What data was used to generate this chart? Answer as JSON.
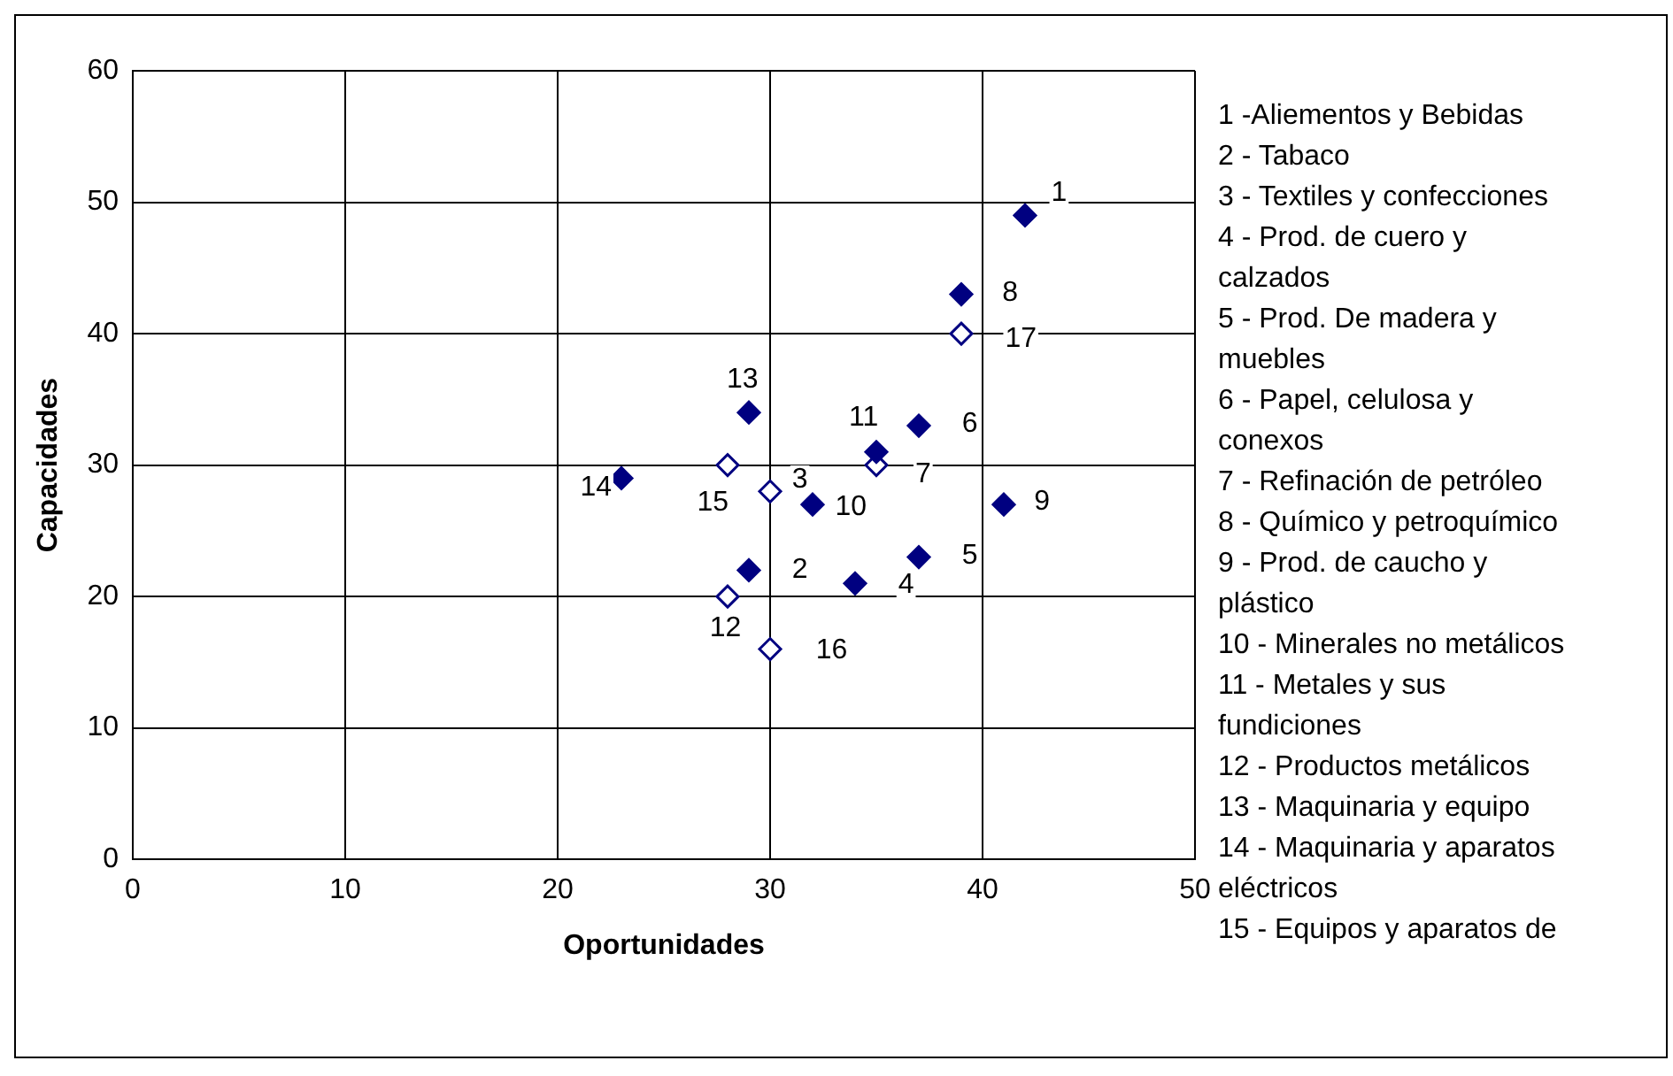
{
  "chart_data": {
    "type": "scatter",
    "xlabel": "Oportunidades",
    "ylabel": "Capacidades",
    "xlim": [
      0,
      50
    ],
    "xticks": [
      0,
      10,
      20,
      30,
      40,
      50
    ],
    "ylim": [
      0,
      60
    ],
    "yticks": [
      0,
      10,
      20,
      30,
      40,
      50,
      60
    ],
    "grid": true,
    "legend": false,
    "series": [
      {
        "color": "#000080",
        "marker": "diamond",
        "x": [
          42,
          29,
          34,
          37,
          37,
          35,
          39,
          41,
          32,
          29,
          23
        ],
        "values": [
          49,
          22,
          21,
          23,
          33,
          31,
          43,
          27,
          27,
          34,
          29
        ]
      },
      {
        "color": "#000080",
        "marker": "diamond open",
        "x": [
          30,
          35,
          28,
          28,
          30,
          39
        ],
        "values": [
          28,
          30,
          20,
          30,
          16,
          40
        ]
      }
    ],
    "annotations": [
      {
        "text": "1",
        "x": 43.6,
        "y": 50.7
      },
      {
        "text": "2",
        "x": 31.4,
        "y": 22
      },
      {
        "text": "3",
        "x": 31.4,
        "y": 28.9
      },
      {
        "text": "4",
        "x": 36.4,
        "y": 20.9
      },
      {
        "text": "5",
        "x": 39.4,
        "y": 23.1
      },
      {
        "text": "6",
        "x": 39.4,
        "y": 33.1
      },
      {
        "text": "7",
        "x": 37.2,
        "y": 29.3
      },
      {
        "text": "8",
        "x": 41.3,
        "y": 43.1
      },
      {
        "text": "9",
        "x": 42.8,
        "y": 27.2
      },
      {
        "text": "10",
        "x": 33.8,
        "y": 26.8
      },
      {
        "text": "11",
        "x": 34.4,
        "y": 33.6
      },
      {
        "text": "12",
        "x": 27.9,
        "y": 17.6
      },
      {
        "text": "13",
        "x": 28.7,
        "y": 36.5
      },
      {
        "text": "14",
        "x": 21.8,
        "y": 28.3
      },
      {
        "text": "15",
        "x": 27.3,
        "y": 27.1
      },
      {
        "text": "16",
        "x": 32.9,
        "y": 15.9
      },
      {
        "text": "17",
        "x": 41.8,
        "y": 39.6
      },
      "1 -Aliementos y Bebidas",
      "2 - Tabaco",
      "3 - Textiles y confecciones",
      "4 - Prod. de cuero y calzados",
      "5 - Prod. De madera y muebles",
      "6 - Papel, celulosa y conexos",
      "7 - Refinación de petróleo",
      "8 - Químico y petroquímico",
      "9 - Prod. de caucho y plástico",
      "10 - Minerales no metálicos",
      "11 - Metales y sus fundiciones",
      "12 - Productos metálicos",
      "13 - Maquinaria y equipo",
      "14 - Maquinaria y aparatos eléctricos",
      "15 - Equipos y aparatos de"
    ]
  }
}
